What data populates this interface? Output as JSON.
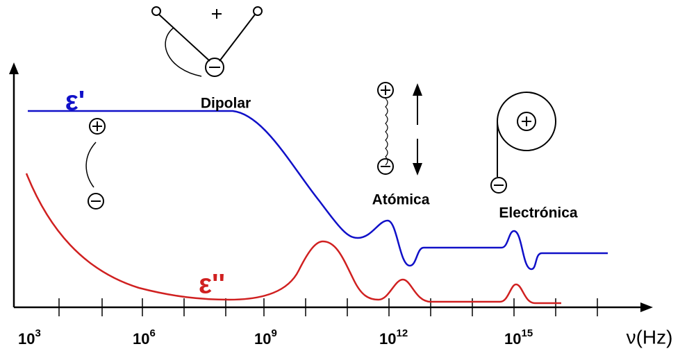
{
  "curves": {
    "real": {
      "label": "ε'"
    },
    "imaginary": {
      "label": "ε''"
    }
  },
  "mechanisms": {
    "dipolar": "Dipolar",
    "atomic": "Atómica",
    "electronic": "Electrónica"
  },
  "axis": {
    "x_label": "ν(Hz)",
    "ticks": [
      {
        "base": "10",
        "exponent": "3"
      },
      {
        "base": "10",
        "exponent": "6"
      },
      {
        "base": "10",
        "exponent": "9"
      },
      {
        "base": "10",
        "exponent": "12"
      },
      {
        "base": "10",
        "exponent": "15"
      }
    ]
  }
}
